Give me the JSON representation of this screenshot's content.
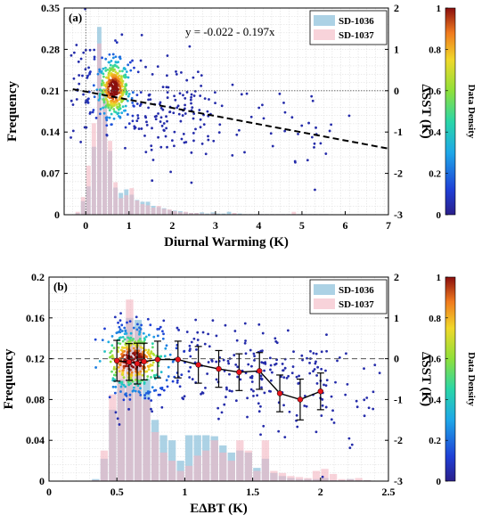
{
  "chart_data": [
    {
      "type": "bar",
      "panel_label": "(a)",
      "equation": "y = -0.022 - 0.197x",
      "xlabel": "Diurnal Warming (K)",
      "ylabel": "Frequency",
      "ylabel_right": "ΔSST (K)",
      "xlim": [
        -0.5,
        7
      ],
      "ylim": [
        0,
        0.35
      ],
      "ylim_right": [
        -3,
        2
      ],
      "xticks": [
        0,
        1,
        2,
        3,
        4,
        5,
        6,
        7
      ],
      "yticks": [
        0,
        0.07,
        0.14,
        0.21,
        0.28,
        0.35
      ],
      "yticklabels": [
        "0",
        "0.07",
        "0.14",
        "0.21",
        "0.28",
        "0.35"
      ],
      "yticks_right": [
        -3,
        -2,
        -1,
        0,
        1,
        2
      ],
      "bin_width": 0.125,
      "bin_start": -0.25,
      "series": [
        {
          "name": "SD-1036",
          "color": "#9ecae1",
          "values": [
            0.003,
            0.023,
            0.048,
            0.115,
            0.318,
            0.214,
            0.108,
            0.046,
            0.037,
            0.043,
            0.034,
            0.025,
            0.022,
            0.022,
            0.015,
            0.013,
            0.011,
            0.008,
            0.007,
            0.006,
            0.004,
            0.003,
            0.003,
            0.004,
            0.002,
            0.004,
            0.002,
            0.002,
            0.005,
            0.002,
            0.002,
            0.001,
            0.001,
            0.001,
            0.001,
            0.001,
            0.001,
            0.001,
            0.001,
            0.001,
            0.001,
            0.001,
            0.001,
            0.001,
            0.001,
            0.001,
            0.001
          ]
        },
        {
          "name": "SD-1037",
          "color": "#f4b6c2",
          "values": [
            0.005,
            0.03,
            0.083,
            0.155,
            0.29,
            0.195,
            0.125,
            0.055,
            0.028,
            0.033,
            0.045,
            0.024,
            0.018,
            0.016,
            0.012,
            0.015,
            0.01,
            0.009,
            0.006,
            0.004,
            0.005,
            0.003,
            0.003,
            0.002,
            0.001,
            0.002,
            0.001,
            0.001,
            0.001,
            0.003,
            0.001,
            0.001,
            0.001,
            0.001,
            0.001,
            0.001,
            0.001,
            0.001,
            0.001,
            0.001,
            0.005,
            0.001,
            0.001,
            0.001,
            0.001,
            0.001,
            0.001
          ]
        }
      ],
      "fit_line": {
        "intercept": -0.022,
        "slope": -0.197,
        "x": [
          -0.3,
          7
        ]
      },
      "zero_line_right": 0,
      "vline_x": 0,
      "scatter_cluster": {
        "x_center": 0.65,
        "y_center": 0.05
      },
      "legend_position": "top-right",
      "grid": true
    },
    {
      "type": "bar",
      "panel_label": "(b)",
      "xlabel": "EΔBT (K)",
      "ylabel": "Frequency",
      "ylabel_right": "ΔSST (K)",
      "xlim": [
        0,
        2.5
      ],
      "ylim": [
        0,
        0.2
      ],
      "ylim_right": [
        -3,
        2
      ],
      "xticks": [
        0,
        0.5,
        1,
        1.5,
        2,
        2.5
      ],
      "yticks": [
        0,
        0.04,
        0.08,
        0.12,
        0.16,
        0.2
      ],
      "yticklabels": [
        "0",
        "0.04",
        "0.08",
        "0.12",
        "0.16",
        "0.2"
      ],
      "yticks_right": [
        -3,
        -2,
        -1,
        0,
        1,
        2
      ],
      "bin_width": 0.0625,
      "bin_start": 0.3125,
      "series": [
        {
          "name": "SD-1036",
          "color": "#9ecae1",
          "values": [
            0.002,
            0.022,
            0.07,
            0.1,
            0.16,
            0.158,
            0.1,
            0.06,
            0.045,
            0.04,
            0.02,
            0.045,
            0.045,
            0.045,
            0.044,
            0.035,
            0.028,
            0.03,
            0.028,
            0.013,
            0.022,
            0.008,
            0.005,
            0.003,
            0.002,
            0.002,
            0.002,
            0.003,
            0.001,
            0.001,
            0.002,
            0.001,
            0.001
          ]
        },
        {
          "name": "SD-1037",
          "color": "#f4b6c2",
          "values": [
            0.001,
            0.03,
            0.085,
            0.12,
            0.178,
            0.15,
            0.08,
            0.048,
            0.028,
            0.02,
            0.01,
            0.015,
            0.025,
            0.03,
            0.04,
            0.028,
            0.02,
            0.04,
            0.03,
            0.01,
            0.04,
            0.01,
            0.008,
            0.005,
            0.004,
            0.003,
            0.01,
            0.012,
            0.007,
            0.002,
            0.002,
            0.003,
            0.001
          ]
        }
      ],
      "binned_means": {
        "x": [
          0.5,
          0.59,
          0.65,
          0.7,
          0.8,
          0.95,
          1.1,
          1.25,
          1.4,
          1.55,
          1.7,
          1.85,
          2.0
        ],
        "mean": [
          -0.05,
          -0.08,
          -0.12,
          -0.07,
          -0.02,
          -0.02,
          -0.15,
          -0.25,
          -0.33,
          -0.3,
          -0.85,
          -1.0,
          -0.8
        ],
        "std": [
          0.5,
          0.45,
          0.5,
          0.45,
          0.45,
          0.45,
          0.45,
          0.45,
          0.45,
          0.45,
          0.45,
          0.5,
          0.45
        ]
      },
      "zero_line_right": 0,
      "scatter_cluster": {
        "x_center": 0.62,
        "y_center": -0.05
      },
      "legend_position": "top-right",
      "grid": true
    }
  ],
  "colorbar": {
    "label": "Data Density",
    "ticks": [
      "0",
      "0.2",
      "0.4",
      "0.6",
      "0.8",
      "1"
    ]
  }
}
